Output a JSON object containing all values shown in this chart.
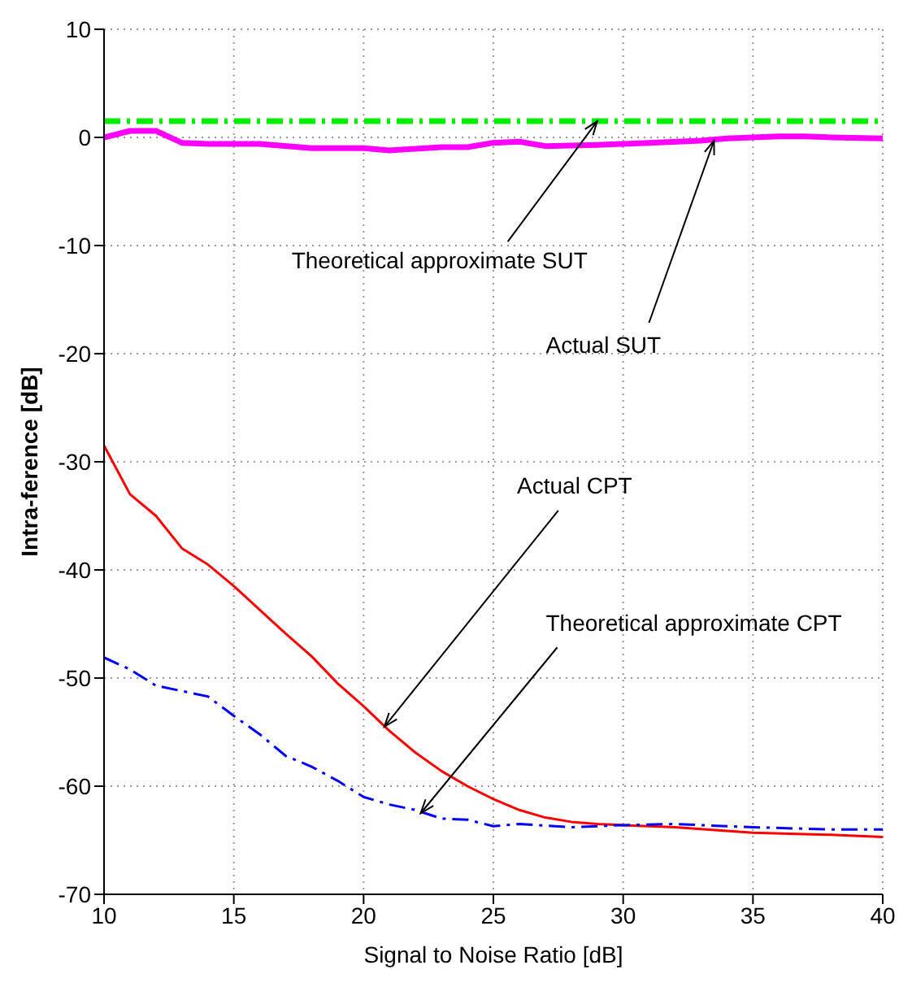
{
  "chart_data": {
    "type": "line",
    "xlabel": "Signal to Noise Ratio [dB]",
    "ylabel": "Intra-ference [dB]",
    "xlim": [
      10,
      40
    ],
    "xticks": [
      10,
      15,
      20,
      25,
      30,
      35,
      40
    ],
    "ylim": [
      -70,
      10
    ],
    "yticks": [
      -70,
      -60,
      -50,
      -40,
      -30,
      -20,
      -10,
      0,
      10
    ],
    "grid": true,
    "marker": "none",
    "series": [
      {
        "color": "#00ee00",
        "line_style": "dashed",
        "x": [
          10,
          40
        ],
        "values": [
          1.5,
          1.5
        ]
      },
      {
        "color": "#ff00ff",
        "line_style": "solid",
        "x": [
          10,
          11,
          12,
          13,
          14,
          16,
          18,
          20,
          21,
          23,
          24,
          25,
          26,
          27,
          29,
          31,
          33,
          34,
          35,
          36,
          37,
          38,
          40
        ],
        "values": [
          0,
          0.6,
          0.6,
          -0.5,
          -0.6,
          -0.6,
          -1,
          -1,
          -1.2,
          -0.9,
          -0.9,
          -0.5,
          -0.4,
          -0.8,
          -0.7,
          -0.5,
          -0.3,
          -0.1,
          0,
          0.1,
          0.1,
          0,
          -0.1
        ]
      },
      {
        "color": "#ff0000",
        "line_style": "solid",
        "x": [
          10,
          11,
          12,
          13,
          14,
          15,
          16,
          17,
          18,
          19,
          20,
          21,
          22,
          23,
          24,
          25,
          26,
          27,
          28,
          29,
          30,
          32,
          35,
          38,
          40
        ],
        "values": [
          -28.5,
          -33,
          -35,
          -38,
          -39.5,
          -41.5,
          -43.7,
          -45.9,
          -48,
          -50.5,
          -52.6,
          -54.9,
          -56.9,
          -58.6,
          -60,
          -61.2,
          -62.2,
          -62.9,
          -63.3,
          -63.5,
          -63.6,
          -63.8,
          -64.3,
          -64.5,
          -64.7
        ]
      },
      {
        "color": "#0000ff",
        "line_style": "dashed",
        "x": [
          10,
          11,
          12,
          13,
          14,
          15,
          16,
          17,
          18,
          19,
          20,
          21,
          22,
          23,
          24,
          25,
          26,
          28,
          30,
          32,
          35,
          38,
          40
        ],
        "values": [
          -48.1,
          -49.2,
          -50.7,
          -51.2,
          -51.7,
          -53.5,
          -55.2,
          -57.2,
          -58.2,
          -59.5,
          -61,
          -61.7,
          -62.2,
          -63,
          -63.1,
          -63.7,
          -63.5,
          -63.8,
          -63.6,
          -63.5,
          -63.8,
          -64,
          -64
        ]
      }
    ],
    "annotations": [
      {
        "text": "Theoretical approximate SUT",
        "x": 29,
        "y": 1.5
      },
      {
        "text": "Actual SUT",
        "x": 33.5,
        "y": -0.3
      },
      {
        "text": "Actual CPT",
        "x": 20.8,
        "y": -54.5
      },
      {
        "text": "Theoretical approximate CPT",
        "x": 22.2,
        "y": -62.5
      }
    ]
  }
}
